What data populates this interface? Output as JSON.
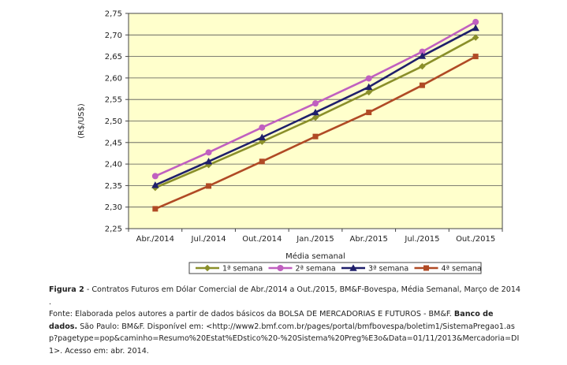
{
  "chart_data": {
    "type": "line",
    "categories": [
      "Abr./2014",
      "Jul./2014",
      "Out./2014",
      "Jan./2015",
      "Abr./2015",
      "Jul./2015",
      "Out./2015"
    ],
    "ylabel": "(R$/US$)",
    "xlabel": "Média semanal",
    "ylim": [
      2.25,
      2.75
    ],
    "yticks": [
      "2,25",
      "2,30",
      "2,35",
      "2,40",
      "2,45",
      "2,50",
      "2,55",
      "2,60",
      "2,65",
      "2,70",
      "2,75"
    ],
    "grid": true,
    "legend_position": "bottom",
    "series": [
      {
        "name": "1ª semana",
        "color": "#8a8f2a",
        "marker": "diamond",
        "values": [
          2.345,
          2.398,
          2.452,
          2.508,
          2.567,
          2.627,
          2.694
        ]
      },
      {
        "name": "2ª semana",
        "color": "#c060c0",
        "marker": "circle",
        "values": [
          2.372,
          2.427,
          2.485,
          2.541,
          2.599,
          2.661,
          2.73
        ]
      },
      {
        "name": "3ª semana",
        "color": "#1f1f6b",
        "marker": "triangle",
        "values": [
          2.351,
          2.406,
          2.462,
          2.52,
          2.579,
          2.651,
          2.716
        ]
      },
      {
        "name": "4ª semana",
        "color": "#b04a25",
        "marker": "square",
        "values": [
          2.296,
          2.349,
          2.406,
          2.464,
          2.52,
          2.583,
          2.65
        ]
      }
    ]
  },
  "caption": {
    "figure_label": "Figura 2",
    "figure_text": " - Contratos Futuros em Dólar Comercial de Abr./2014 a Out./2015, BM&F-Bovespa, Média Semanal, Março de 2014 .",
    "source_label": "Fonte:",
    "source_part1": " Elaborada pelos autores a partir de dados básicos da BOLSA DE MERCADORIAS E FUTUROS - BM&F. ",
    "source_bold": "Banco de dados.",
    "source_part2": " São Paulo: BM&F. Disponível em: <http://www2.bmf.com.br/pages/portal/bmfbovespa/boletim1/SistemaPregao1.asp?pagetype=pop&caminho=Resumo%20Estat%EDstico%20-%20Sistema%20Preg%E3o&Data=01/11/2013&Mercadoria=DI1>. Acesso em: abr. 2014."
  },
  "colors": {
    "plot_bg": "#ffffcc",
    "grid": "#555555"
  }
}
